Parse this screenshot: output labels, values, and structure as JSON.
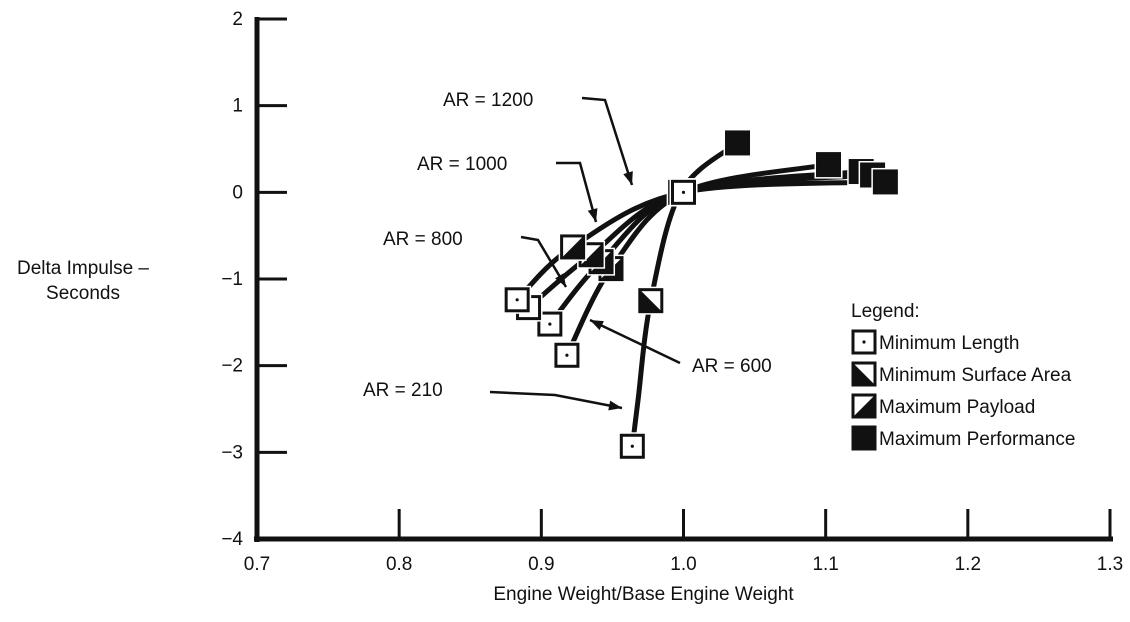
{
  "chart_data": {
    "type": "line",
    "xlabel": "Engine Weight/Base Engine Weight",
    "ylabel_lines": [
      "Delta Impulse –",
      "Seconds"
    ],
    "xlim": [
      0.7,
      1.3
    ],
    "ylim": [
      -4,
      2
    ],
    "x_ticks": [
      "0.7",
      "0.8",
      "0.9",
      "1.0",
      "1.1",
      "1.2",
      "1.3"
    ],
    "y_ticks": [
      "2",
      "1",
      "0",
      "−1",
      "−2",
      "−3",
      "−4"
    ],
    "grid": false,
    "series": [
      {
        "name": "AR = 210",
        "x": [
          0.964,
          0.968,
          0.977,
          0.998,
          1.038
        ],
        "y": [
          -2.93,
          -2.4,
          -1.25,
          0.0,
          0.57
        ]
      },
      {
        "name": "AR = 600",
        "x": [
          0.918,
          0.949,
          1.0,
          1.102
        ],
        "y": [
          -1.88,
          -0.88,
          0.0,
          0.32
        ]
      },
      {
        "name": "AR = 800",
        "x": [
          0.906,
          0.942,
          1.0,
          1.125
        ],
        "y": [
          -1.52,
          -0.8,
          0.0,
          0.24
        ]
      },
      {
        "name": "AR = 1000",
        "x": [
          0.891,
          0.935,
          1.0,
          1.133
        ],
        "y": [
          -1.33,
          -0.72,
          0.0,
          0.2
        ]
      },
      {
        "name": "AR = 1200",
        "x": [
          0.883,
          0.922,
          1.0,
          1.142
        ],
        "y": [
          -1.24,
          -0.63,
          0.0,
          0.12
        ]
      }
    ],
    "annotations": [
      {
        "text": "AR = 1200",
        "series": "AR = 1200"
      },
      {
        "text": "AR = 1000",
        "series": "AR = 1000"
      },
      {
        "text": "AR = 800",
        "series": "AR = 800"
      },
      {
        "text": "AR = 600",
        "series": "AR = 600"
      },
      {
        "text": "AR = 210",
        "series": "AR = 210"
      }
    ],
    "legend": {
      "title": "Legend:",
      "position": "right",
      "items": [
        {
          "label": "Minimum Length",
          "marker": "open-square-dot"
        },
        {
          "label": "Minimum Surface Area",
          "marker": "lower-left-filled-square"
        },
        {
          "label": "Maximum Payload",
          "marker": "lower-right-filled-square"
        },
        {
          "label": "Maximum Performance",
          "marker": "filled-square"
        }
      ]
    }
  }
}
